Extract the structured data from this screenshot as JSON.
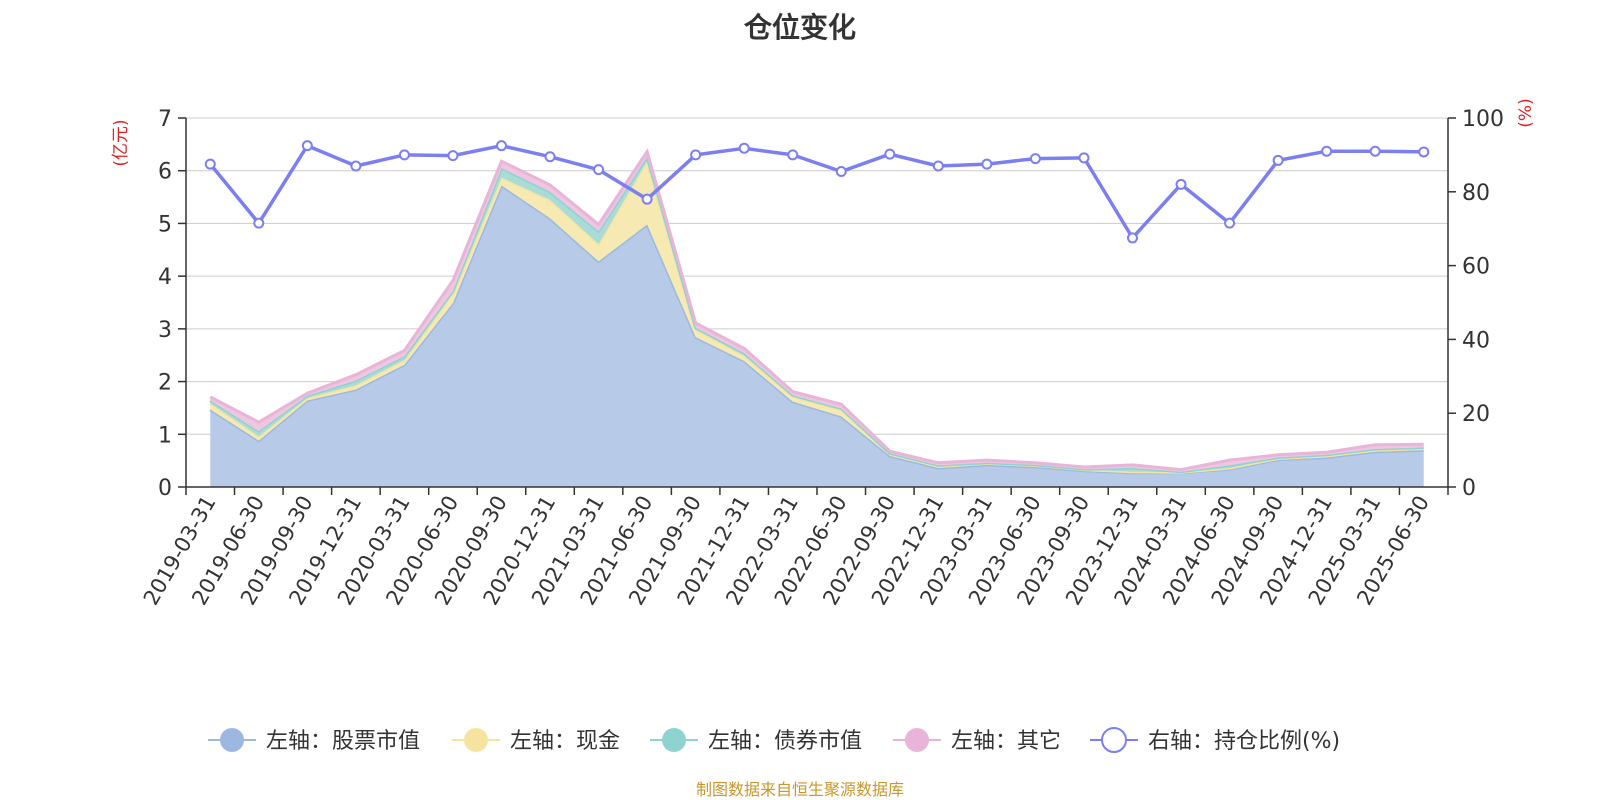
{
  "chart_data": {
    "type": "area",
    "title": "仓位变化",
    "y_left_label": "(亿元)",
    "y_right_label": "(%)",
    "ylim_left": [
      0,
      7
    ],
    "ylim_right": [
      0,
      100
    ],
    "y_left_ticks": [
      "0",
      "1",
      "2",
      "3",
      "4",
      "5",
      "6",
      "7"
    ],
    "y_right_ticks": [
      "0",
      "20",
      "40",
      "60",
      "80",
      "100"
    ],
    "grid": true,
    "legend_position": "bottom",
    "categories": [
      "2019-03-31",
      "2019-06-30",
      "2019-09-30",
      "2019-12-31",
      "2020-03-31",
      "2020-06-30",
      "2020-09-30",
      "2020-12-31",
      "2021-03-31",
      "2021-06-30",
      "2021-09-30",
      "2021-12-31",
      "2022-03-31",
      "2022-06-30",
      "2022-09-30",
      "2022-12-31",
      "2023-03-31",
      "2023-06-30",
      "2023-09-30",
      "2023-12-31",
      "2024-03-31",
      "2024-06-30",
      "2024-09-30",
      "2024-12-31",
      "2025-03-31",
      "2025-06-30"
    ],
    "series": [
      {
        "name": "左轴：股票市值",
        "axis": "left",
        "kind": "stacked-area",
        "color": "#9db8e0",
        "fill": "#b7cbe9",
        "values": [
          1.47,
          0.88,
          1.64,
          1.85,
          2.32,
          3.49,
          5.72,
          5.1,
          4.28,
          4.98,
          2.84,
          2.39,
          1.62,
          1.34,
          0.59,
          0.36,
          0.42,
          0.38,
          0.31,
          0.27,
          0.27,
          0.34,
          0.52,
          0.56,
          0.67,
          0.7
        ]
      },
      {
        "name": "左轴：现金",
        "axis": "left",
        "kind": "stacked-area",
        "color": "#f5e4a0",
        "fill": "#f7e9b2",
        "values": [
          0.12,
          0.08,
          0.05,
          0.08,
          0.09,
          0.18,
          0.15,
          0.35,
          0.33,
          1.2,
          0.15,
          0.1,
          0.1,
          0.12,
          0.04,
          0.04,
          0.03,
          0.03,
          0.02,
          0.02,
          0.01,
          0.02,
          0.02,
          0.03,
          0.03,
          0.03
        ]
      },
      {
        "name": "左轴：债券市值",
        "axis": "left",
        "kind": "stacked-area",
        "color": "#8fd3d0",
        "fill": "#a9dcd8",
        "values": [
          0.05,
          0.1,
          0.04,
          0.09,
          0.07,
          0.05,
          0.18,
          0.15,
          0.24,
          0.08,
          0.03,
          0.05,
          0.02,
          0.03,
          0.01,
          0.01,
          0.01,
          0.01,
          0.01,
          0.07,
          0.01,
          0.05,
          0.02,
          0.02,
          0.02,
          0.02
        ]
      },
      {
        "name": "左轴：其它",
        "axis": "left",
        "kind": "stacked-area",
        "color": "#e8b4d8",
        "fill": "#eec6e2",
        "values": [
          0.07,
          0.17,
          0.05,
          0.11,
          0.11,
          0.2,
          0.13,
          0.13,
          0.13,
          0.1,
          0.09,
          0.09,
          0.07,
          0.08,
          0.04,
          0.05,
          0.05,
          0.04,
          0.04,
          0.06,
          0.04,
          0.1,
          0.05,
          0.05,
          0.08,
          0.06
        ]
      },
      {
        "name": "右轴：持仓比例(%)",
        "axis": "right",
        "kind": "line",
        "color": "#7b7ff0",
        "values": [
          87.5,
          71.5,
          92.5,
          87.0,
          90.0,
          89.8,
          92.5,
          89.5,
          86.0,
          78.0,
          90.0,
          91.8,
          90.0,
          85.5,
          90.2,
          87.0,
          87.5,
          89.0,
          89.2,
          67.5,
          82.0,
          71.5,
          88.5,
          91.0,
          91.0,
          90.8
        ]
      }
    ]
  },
  "footer": {
    "source": "制图数据来自恒生聚源数据库"
  }
}
